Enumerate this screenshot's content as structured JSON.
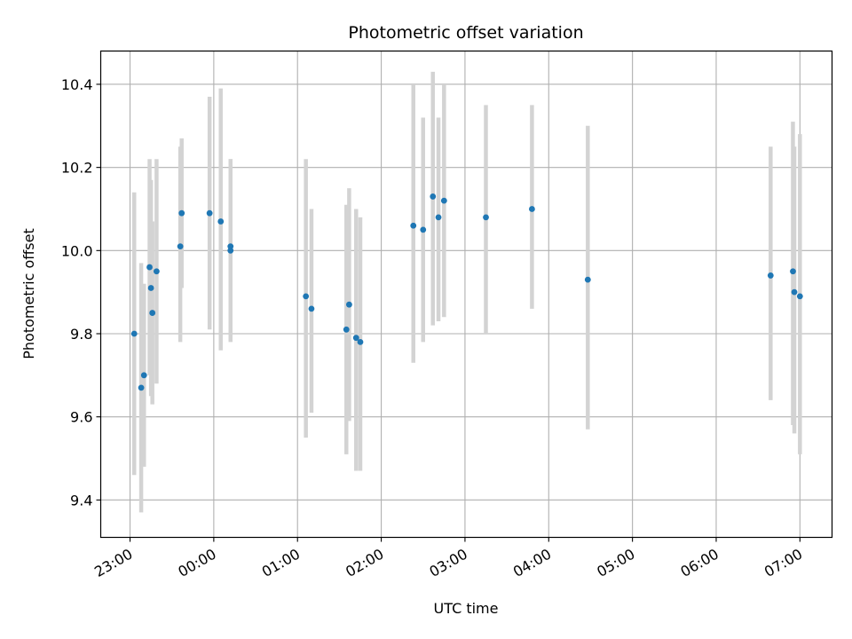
{
  "chart_data": {
    "type": "scatter",
    "title": "Photometric offset variation",
    "xlabel": "UTC time",
    "ylabel": "Photometric offset",
    "x_axis": "time",
    "xlim": [
      "22:39",
      "07:23"
    ],
    "ylim": [
      9.31,
      10.48
    ],
    "xticks": [
      "23:00",
      "00:00",
      "01:00",
      "02:00",
      "03:00",
      "04:00",
      "05:00",
      "06:00",
      "07:00"
    ],
    "yticks": [
      "9.4",
      "9.6",
      "9.8",
      "10.0",
      "10.2",
      "10.4"
    ],
    "grid": true,
    "series": [
      {
        "marker_color": "#1f77b4",
        "errorbar_color": "#d3d3d3",
        "points": [
          {
            "t": "23:03",
            "y": 9.8,
            "lo": 9.46,
            "hi": 10.14
          },
          {
            "t": "23:08",
            "y": 9.67,
            "lo": 9.37,
            "hi": 9.97
          },
          {
            "t": "23:10",
            "y": 9.7,
            "lo": 9.48,
            "hi": 9.92
          },
          {
            "t": "23:14",
            "y": 9.96,
            "lo": 9.7,
            "hi": 10.22
          },
          {
            "t": "23:15",
            "y": 9.91,
            "lo": 9.65,
            "hi": 10.17
          },
          {
            "t": "23:16",
            "y": 9.85,
            "lo": 9.63,
            "hi": 10.07
          },
          {
            "t": "23:19",
            "y": 9.95,
            "lo": 9.68,
            "hi": 10.22
          },
          {
            "t": "23:36",
            "y": 10.01,
            "lo": 9.78,
            "hi": 10.25
          },
          {
            "t": "23:37",
            "y": 10.09,
            "lo": 9.91,
            "hi": 10.27
          },
          {
            "t": "23:57",
            "y": 10.09,
            "lo": 9.81,
            "hi": 10.37
          },
          {
            "t": "00:05",
            "y": 10.07,
            "lo": 9.76,
            "hi": 10.39
          },
          {
            "t": "00:12",
            "y": 10.01,
            "lo": 9.8,
            "hi": 10.22
          },
          {
            "t": "00:12",
            "y": 10.0,
            "lo": 9.78,
            "hi": 10.22
          },
          {
            "t": "01:06",
            "y": 9.89,
            "lo": 9.55,
            "hi": 10.22
          },
          {
            "t": "01:10",
            "y": 9.86,
            "lo": 9.61,
            "hi": 10.1
          },
          {
            "t": "01:35",
            "y": 9.81,
            "lo": 9.51,
            "hi": 10.11
          },
          {
            "t": "01:37",
            "y": 9.87,
            "lo": 9.59,
            "hi": 10.15
          },
          {
            "t": "01:42",
            "y": 9.79,
            "lo": 9.47,
            "hi": 10.1
          },
          {
            "t": "01:45",
            "y": 9.78,
            "lo": 9.47,
            "hi": 10.08
          },
          {
            "t": "02:23",
            "y": 10.06,
            "lo": 9.73,
            "hi": 10.4
          },
          {
            "t": "02:30",
            "y": 10.05,
            "lo": 9.78,
            "hi": 10.32
          },
          {
            "t": "02:37",
            "y": 10.13,
            "lo": 9.82,
            "hi": 10.43
          },
          {
            "t": "02:41",
            "y": 10.08,
            "lo": 9.83,
            "hi": 10.32
          },
          {
            "t": "02:45",
            "y": 10.12,
            "lo": 9.84,
            "hi": 10.4
          },
          {
            "t": "03:15",
            "y": 10.08,
            "lo": 9.8,
            "hi": 10.35
          },
          {
            "t": "03:48",
            "y": 10.1,
            "lo": 9.86,
            "hi": 10.35
          },
          {
            "t": "04:28",
            "y": 9.93,
            "lo": 9.57,
            "hi": 10.3
          },
          {
            "t": "06:39",
            "y": 9.94,
            "lo": 9.64,
            "hi": 10.25
          },
          {
            "t": "06:55",
            "y": 9.95,
            "lo": 9.58,
            "hi": 10.31
          },
          {
            "t": "06:56",
            "y": 9.9,
            "lo": 9.56,
            "hi": 10.25
          },
          {
            "t": "07:00",
            "y": 9.89,
            "lo": 9.51,
            "hi": 10.28
          }
        ]
      }
    ]
  }
}
